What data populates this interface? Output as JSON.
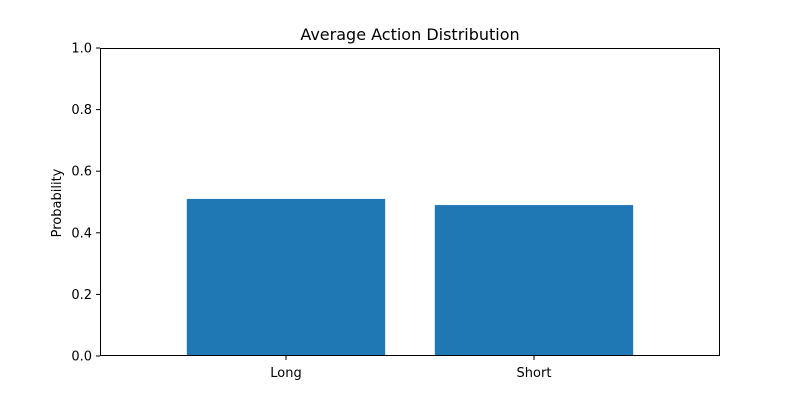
{
  "chart_data": {
    "type": "bar",
    "title": "Average Action Distribution",
    "xlabel": "",
    "ylabel": "Probability",
    "categories": [
      "Long",
      "Short"
    ],
    "values": [
      0.51,
      0.49
    ],
    "ylim": [
      0,
      1.0
    ],
    "yticks": [
      "0.0",
      "0.2",
      "0.4",
      "0.6",
      "0.8",
      "1.0"
    ],
    "bar_color": "#1f77b4",
    "grid": false,
    "legend": false
  }
}
